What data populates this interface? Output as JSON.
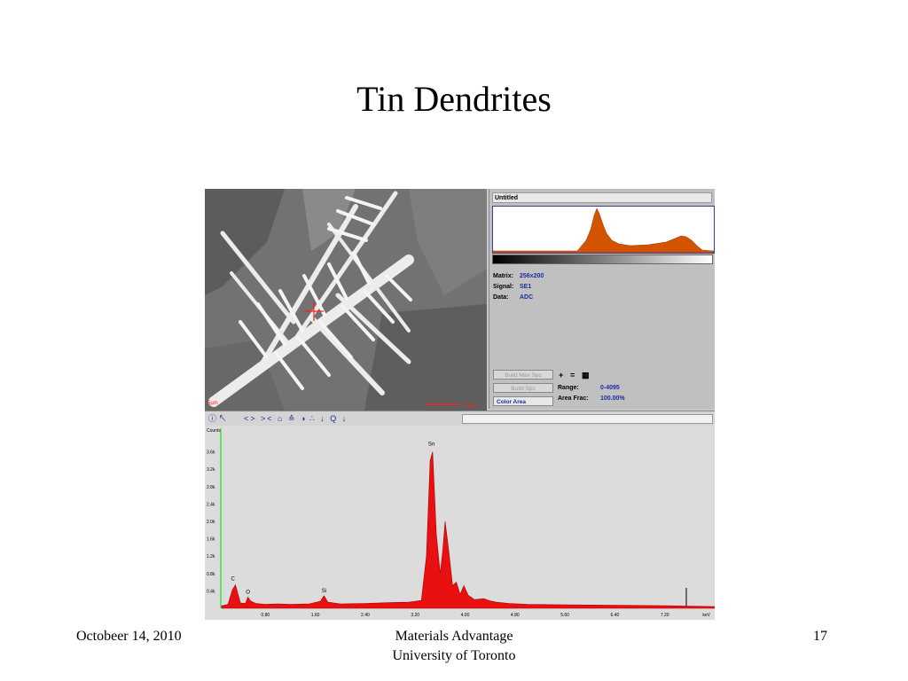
{
  "slide": {
    "title": "Tin Dendrites",
    "footer_date": "Octobeer 14, 2010",
    "footer_org_line1": "Materials Advantage",
    "footer_org_line2": "University of Toronto",
    "slide_number": "17"
  },
  "sem_image": {
    "corner_label": "5µm",
    "scale_bar_label": "10µm",
    "crosshair_color": "#ff2020"
  },
  "right_panel": {
    "window_title": "Untitled",
    "histogram_color": "#d35400",
    "matrix_label": "Matrix:",
    "matrix_value": "256x200",
    "signal_label": "Signal:",
    "signal_value": "SE1",
    "data_label": "Data:",
    "data_value": "ADC",
    "build_max_spc": "Build Max Spc",
    "build_spc": "Build Spc",
    "color_area": "Color Area",
    "range_label": "Range:",
    "range_value": "0-4095",
    "area_frac_label": "Area Frac:",
    "area_frac_value": "100.00%",
    "symbol_plus": "+",
    "symbol_eq": "=",
    "symbol_grid": "▦"
  },
  "toolbar": {
    "icons": [
      "info-icon",
      "pointer-icon",
      "expand-icon",
      "compress-icon",
      "peak-icon",
      "marker-icon",
      "scale-icon",
      "down-arrow-icon",
      "periodic-icon",
      "down-arrow-icon",
      "zoom-icon",
      "down-arrow-icon"
    ],
    "glyphs_left": "ⓘ ↖",
    "glyphs_mid": "<> >< ⌂ ≙ ◑",
    "glyphs_right": "∴ ↓ Q ↓"
  },
  "spectrum": {
    "y_axis_title": "Counts",
    "y_ticks": [
      "3.6k",
      "3.2k",
      "2.8k",
      "2.4k",
      "2.0k",
      "1.6k",
      "1.2k",
      "0.8k",
      "0.4k"
    ],
    "x_ticks": [
      "0.80",
      "1.60",
      "2.40",
      "3.20",
      "4.00",
      "4.80",
      "5.60",
      "6.40",
      "7.20"
    ],
    "x_unit": "keV",
    "peak_labels": [
      "C",
      "O",
      "Si",
      "Sn"
    ],
    "fill_color": "#e81010"
  },
  "chart_data": {
    "type": "area",
    "title": "",
    "xlabel": "keV",
    "ylabel": "Counts",
    "xlim": [
      0,
      8
    ],
    "ylim": [
      0,
      4000
    ],
    "series": [
      {
        "x": [
          0.1,
          0.2,
          0.27,
          0.32,
          0.4,
          0.48,
          0.52,
          0.56,
          0.65,
          0.8,
          1.0,
          1.2,
          1.5,
          1.68,
          1.74,
          1.8,
          2.0,
          2.4,
          2.8,
          3.1,
          3.3,
          3.38,
          3.44,
          3.48,
          3.54,
          3.6,
          3.64,
          3.68,
          3.74,
          3.8,
          3.86,
          3.92,
          3.98,
          4.05,
          4.15,
          4.3,
          4.4,
          4.5,
          4.7,
          5.0,
          5.6,
          6.4,
          7.2,
          7.6,
          8.0
        ],
        "y": [
          60,
          90,
          420,
          540,
          120,
          110,
          260,
          170,
          110,
          90,
          100,
          90,
          100,
          160,
          290,
          140,
          100,
          110,
          130,
          140,
          180,
          1200,
          3400,
          3600,
          1700,
          800,
          1300,
          2000,
          1300,
          520,
          600,
          320,
          520,
          300,
          200,
          220,
          170,
          140,
          110,
          90,
          80,
          70,
          60,
          50,
          40
        ]
      }
    ]
  }
}
